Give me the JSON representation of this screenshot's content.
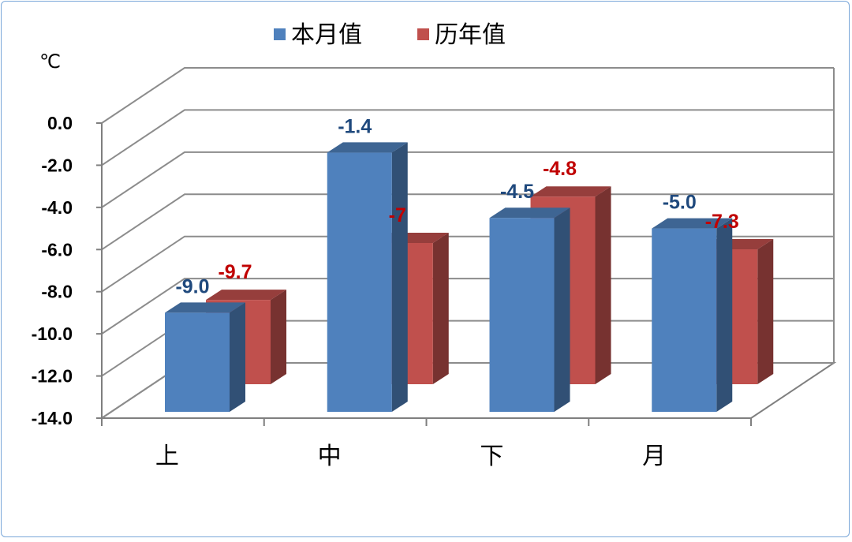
{
  "chart_data": {
    "type": "bar",
    "categories": [
      "上",
      "中",
      "下",
      "月"
    ],
    "series": [
      {
        "name": "本月值",
        "values": [
          -9.0,
          -1.4,
          -4.5,
          -5.0
        ],
        "labels": [
          "-9.0",
          "-1.4",
          "-4.5",
          "-5.0"
        ],
        "color": "#4f81bd",
        "label_color": "#1f497d"
      },
      {
        "name": "历年值",
        "values": [
          -9.7,
          -7.0,
          -4.8,
          -7.3
        ],
        "labels": [
          "-9.7",
          "-7",
          "-4.8",
          "-7.3"
        ],
        "color": "#c0504d",
        "label_color": "#c00000"
      }
    ],
    "ylabel": "℃",
    "ylim": [
      -14.0,
      0.0
    ],
    "yticks": [
      "0.0",
      "-2.0",
      "-4.0",
      "-6.0",
      "-8.0",
      "-10.0",
      "-12.0",
      "-14.0"
    ],
    "grid": true,
    "legend_position": "top",
    "style": "3d-clustered-bar"
  }
}
